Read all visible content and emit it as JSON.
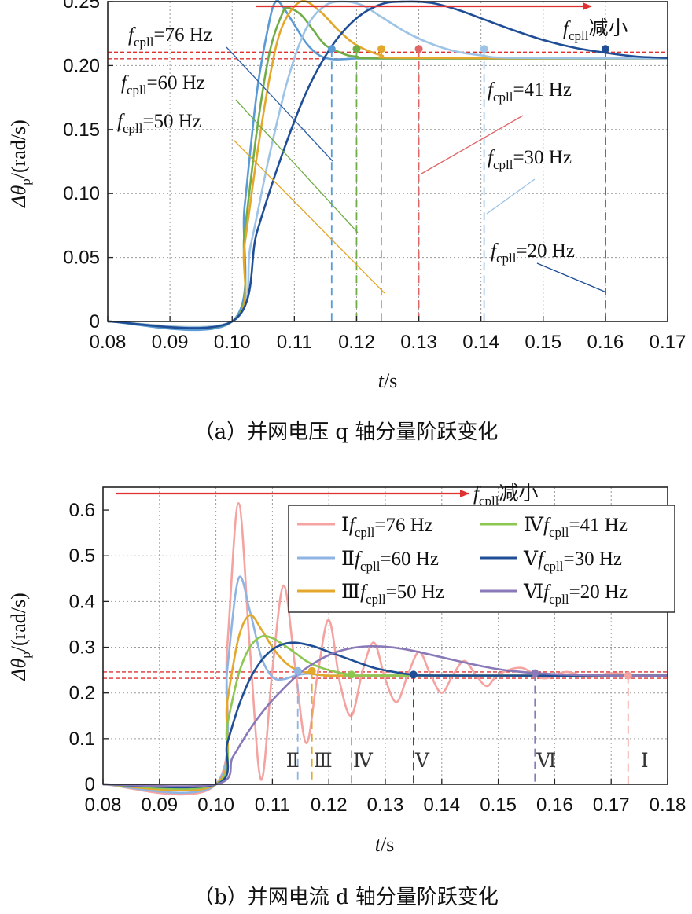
{
  "chart_data": [
    {
      "type": "line",
      "caption": "（a）并网电压 q 轴分量阶跃变化",
      "xlabel_var": "t",
      "xlabel_unit": "/s",
      "ylabel_var": "Δθ",
      "ylabel_sub": "p",
      "ylabel_unit": "/(rad/s)",
      "xlim": [
        0.08,
        0.17
      ],
      "ylim": [
        0,
        0.25
      ],
      "xticks": [
        "0.08",
        "0.09",
        "0.10",
        "0.11",
        "0.12",
        "0.13",
        "0.14",
        "0.15",
        "0.16",
        "0.17"
      ],
      "yticks": [
        "0",
        "0.05",
        "0.10",
        "0.15",
        "0.20",
        "0.25"
      ],
      "grid": true,
      "trend_label_var": "f",
      "trend_label_sub": "cpll",
      "trend_label_text": "减小",
      "steady_band": [
        0.2053,
        0.2105
      ],
      "series": [
        {
          "name": "fcpll=76 Hz",
          "var": "f",
          "sub": "cpll",
          "text": "=76 Hz",
          "color": "#5b9bd5",
          "settle_x": 0.116,
          "marker_y": 0.213,
          "x": [
            0.08,
            0.1,
            0.102,
            0.104,
            0.106,
            0.107,
            0.108,
            0.11,
            0.112,
            0.114,
            0.116,
            0.118,
            0.12,
            0.125,
            0.17
          ],
          "y": [
            0,
            0,
            0.09,
            0.18,
            0.235,
            0.25,
            0.247,
            0.232,
            0.217,
            0.208,
            0.205,
            0.205,
            0.2055,
            0.2055,
            0.2055
          ]
        },
        {
          "name": "fcpll=60 Hz",
          "var": "f",
          "sub": "cpll",
          "text": "=60 Hz",
          "color": "#70ad47",
          "settle_x": 0.12,
          "marker_y": 0.213,
          "x": [
            0.08,
            0.1,
            0.102,
            0.104,
            0.106,
            0.108,
            0.109,
            0.111,
            0.113,
            0.115,
            0.118,
            0.12,
            0.125,
            0.17
          ],
          "y": [
            0,
            0,
            0.07,
            0.15,
            0.21,
            0.24,
            0.245,
            0.24,
            0.228,
            0.216,
            0.209,
            0.207,
            0.2055,
            0.2055
          ]
        },
        {
          "name": "fcpll=50 Hz",
          "var": "f",
          "sub": "cpll",
          "text": "=50 Hz",
          "color": "#e3a82b",
          "settle_x": 0.124,
          "marker_y": 0.213,
          "x": [
            0.08,
            0.1,
            0.102,
            0.104,
            0.106,
            0.108,
            0.111,
            0.114,
            0.117,
            0.12,
            0.124,
            0.128,
            0.17
          ],
          "y": [
            0,
            0,
            0.06,
            0.13,
            0.19,
            0.23,
            0.25,
            0.243,
            0.228,
            0.216,
            0.208,
            0.206,
            0.2055
          ]
        },
        {
          "name": "fcpll=41 Hz",
          "var": "f",
          "sub": "cpll",
          "text": "=41 Hz",
          "color": "#e06666",
          "settle_x": 0.13,
          "marker_y": 0.213,
          "x": [],
          "y": []
        },
        {
          "name": "fcpll=30 Hz",
          "var": "f",
          "sub": "cpll",
          "text": "=30 Hz",
          "color": "#9dc3e6",
          "settle_x": 0.1405,
          "marker_y": 0.213,
          "x": [
            0.08,
            0.1,
            0.103,
            0.106,
            0.109,
            0.112,
            0.115,
            0.118,
            0.121,
            0.124,
            0.128,
            0.132,
            0.136,
            0.14,
            0.145,
            0.17
          ],
          "y": [
            0,
            0,
            0.06,
            0.13,
            0.19,
            0.23,
            0.247,
            0.25,
            0.247,
            0.238,
            0.226,
            0.217,
            0.211,
            0.208,
            0.206,
            0.2055
          ]
        },
        {
          "name": "fcpll=20 Hz",
          "var": "f",
          "sub": "cpll",
          "text": "=20 Hz",
          "color": "#1f4e96",
          "settle_x": 0.16,
          "marker_y": 0.213,
          "x": [
            0.08,
            0.1,
            0.104,
            0.108,
            0.112,
            0.116,
            0.12,
            0.124,
            0.128,
            0.132,
            0.136,
            0.14,
            0.145,
            0.15,
            0.155,
            0.16,
            0.165,
            0.17
          ],
          "y": [
            0,
            0,
            0.07,
            0.13,
            0.18,
            0.215,
            0.237,
            0.248,
            0.25,
            0.249,
            0.244,
            0.237,
            0.228,
            0.22,
            0.214,
            0.21,
            0.207,
            0.206
          ]
        }
      ]
    },
    {
      "type": "line",
      "caption": "（b）并网电流 d 轴分量阶跃变化",
      "xlabel_var": "t",
      "xlabel_unit": "/s",
      "ylabel_var": "Δθ",
      "ylabel_sub": "p",
      "ylabel_unit": "/(rad/s)",
      "xlim": [
        0.08,
        0.18
      ],
      "ylim": [
        0,
        0.65
      ],
      "xticks": [
        "0.08",
        "0.09",
        "0.10",
        "0.11",
        "0.12",
        "0.13",
        "0.14",
        "0.15",
        "0.16",
        "0.17",
        "0.18"
      ],
      "yticks": [
        "0",
        "0.1",
        "0.2",
        "0.3",
        "0.4",
        "0.5",
        "0.6"
      ],
      "grid": true,
      "legend_position": "top-right",
      "trend_label_var": "f",
      "trend_label_sub": "cpll",
      "trend_label_text": "减小",
      "steady_band": [
        0.232,
        0.246
      ],
      "series": [
        {
          "name": "I fcpll=76 Hz",
          "roman": "Ⅰ",
          "var": "f",
          "sub": "cpll",
          "text": "=76 Hz",
          "color": "#f4a3a0",
          "settle_x": 0.173,
          "marker_y": 0.238,
          "x": [
            0.08,
            0.1,
            0.102,
            0.104,
            0.106,
            0.108,
            0.11,
            0.112,
            0.114,
            0.116,
            0.118,
            0.12,
            0.122,
            0.124,
            0.126,
            0.128,
            0.13,
            0.132,
            0.134,
            0.136,
            0.138,
            0.14,
            0.142,
            0.144,
            0.146,
            0.148,
            0.15,
            0.154,
            0.158,
            0.162,
            0.166,
            0.17,
            0.175,
            0.18
          ],
          "y": [
            0,
            0,
            0.3,
            0.615,
            0.3,
            0.01,
            0.25,
            0.435,
            0.26,
            0.09,
            0.24,
            0.36,
            0.22,
            0.15,
            0.25,
            0.31,
            0.23,
            0.18,
            0.24,
            0.29,
            0.24,
            0.2,
            0.24,
            0.27,
            0.24,
            0.215,
            0.24,
            0.255,
            0.232,
            0.246,
            0.235,
            0.243,
            0.238,
            0.238
          ]
        },
        {
          "name": "II fcpll=60 Hz",
          "roman": "Ⅱ",
          "var": "f",
          "sub": "cpll",
          "text": "=60 Hz",
          "color": "#8fb4e3",
          "settle_x": 0.1145,
          "marker_y": 0.248,
          "x": [
            0.08,
            0.1,
            0.102,
            0.104,
            0.106,
            0.108,
            0.11,
            0.112,
            0.114,
            0.116,
            0.118,
            0.12,
            0.125,
            0.18
          ],
          "y": [
            0,
            0,
            0.25,
            0.45,
            0.38,
            0.28,
            0.235,
            0.23,
            0.238,
            0.242,
            0.24,
            0.238,
            0.238,
            0.238
          ]
        },
        {
          "name": "III fcpll=50 Hz",
          "roman": "Ⅲ",
          "var": "f",
          "sub": "cpll",
          "text": "=50 Hz",
          "color": "#e3a82b",
          "settle_x": 0.117,
          "marker_y": 0.248,
          "x": [
            0.08,
            0.1,
            0.102,
            0.104,
            0.106,
            0.108,
            0.11,
            0.112,
            0.114,
            0.116,
            0.118,
            0.12,
            0.125,
            0.18
          ],
          "y": [
            0,
            0,
            0.18,
            0.32,
            0.37,
            0.34,
            0.3,
            0.27,
            0.252,
            0.245,
            0.24,
            0.238,
            0.238,
            0.238
          ]
        },
        {
          "name": "IV fcpll=41 Hz",
          "roman": "Ⅳ",
          "var": "f",
          "sub": "cpll",
          "text": "=41 Hz",
          "color": "#8cc751",
          "settle_x": 0.124,
          "marker_y": 0.24,
          "x": [
            0.08,
            0.1,
            0.102,
            0.104,
            0.106,
            0.108,
            0.11,
            0.112,
            0.114,
            0.116,
            0.118,
            0.12,
            0.122,
            0.124,
            0.128,
            0.18
          ],
          "y": [
            0,
            0,
            0.13,
            0.24,
            0.3,
            0.323,
            0.32,
            0.305,
            0.288,
            0.27,
            0.258,
            0.25,
            0.244,
            0.24,
            0.238,
            0.238
          ]
        },
        {
          "name": "V fcpll=30 Hz",
          "roman": "Ⅴ",
          "var": "f",
          "sub": "cpll",
          "text": "=30 Hz",
          "color": "#1f4e96",
          "settle_x": 0.135,
          "marker_y": 0.24,
          "x": [
            0.08,
            0.1,
            0.102,
            0.104,
            0.106,
            0.108,
            0.11,
            0.112,
            0.114,
            0.117,
            0.12,
            0.124,
            0.128,
            0.132,
            0.135,
            0.14,
            0.18
          ],
          "y": [
            0,
            0,
            0.09,
            0.17,
            0.23,
            0.27,
            0.295,
            0.307,
            0.31,
            0.303,
            0.29,
            0.272,
            0.255,
            0.245,
            0.24,
            0.238,
            0.238
          ]
        },
        {
          "name": "VI fcpll=20 Hz",
          "roman": "Ⅵ",
          "var": "f",
          "sub": "cpll",
          "text": "=20 Hz",
          "color": "#8a79b8",
          "settle_x": 0.1565,
          "marker_y": 0.243,
          "x": [
            0.08,
            0.1,
            0.103,
            0.106,
            0.109,
            0.112,
            0.115,
            0.118,
            0.121,
            0.124,
            0.127,
            0.131,
            0.135,
            0.14,
            0.145,
            0.15,
            0.155,
            0.16,
            0.17,
            0.18
          ],
          "y": [
            0,
            0,
            0.06,
            0.12,
            0.17,
            0.21,
            0.245,
            0.27,
            0.288,
            0.298,
            0.302,
            0.3,
            0.292,
            0.278,
            0.264,
            0.252,
            0.245,
            0.241,
            0.238,
            0.238
          ]
        }
      ]
    }
  ]
}
